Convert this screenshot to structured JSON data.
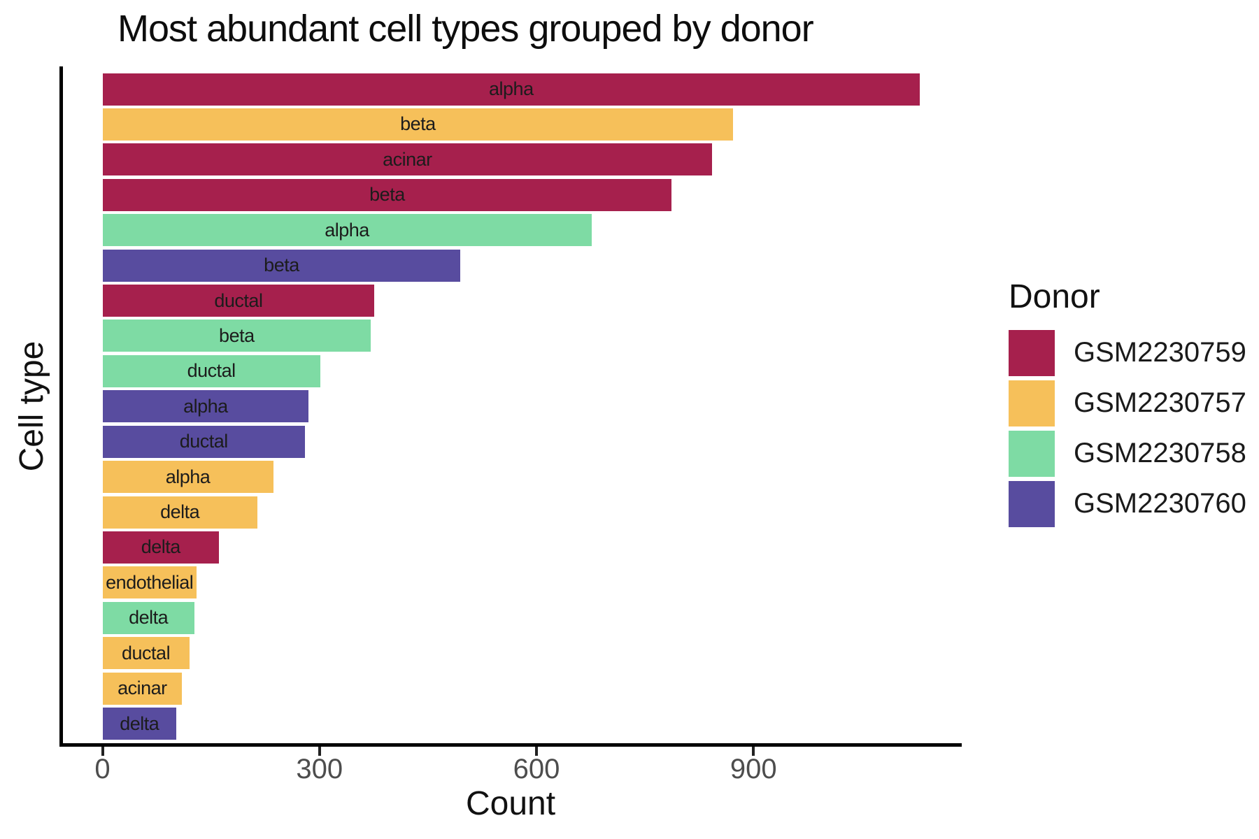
{
  "colors": {
    "background": "#FFFFFF",
    "axis_line": "#000000",
    "tick_text": "#4D4D4D",
    "text": "#111111"
  },
  "chart_data": {
    "type": "bar",
    "orientation": "horizontal",
    "title": "Most abundant cell types grouped by donor",
    "xlabel": "Count",
    "ylabel": "Cell type",
    "xlim": [
      0,
      1185
    ],
    "xticks": [
      0,
      300,
      600,
      900
    ],
    "grid": false,
    "bar_labels_inside": true,
    "legend": {
      "title": "Donor",
      "position": "right"
    },
    "donors": [
      {
        "id": "GSM2230759",
        "color": "#A6204D"
      },
      {
        "id": "GSM2230757",
        "color": "#F6C05A"
      },
      {
        "id": "GSM2230758",
        "color": "#7EDBA4"
      },
      {
        "id": "GSM2230760",
        "color": "#584C9F"
      }
    ],
    "bars": [
      {
        "cell_type": "alpha",
        "donor": "GSM2230759",
        "count": 1130
      },
      {
        "cell_type": "beta",
        "donor": "GSM2230757",
        "count": 872
      },
      {
        "cell_type": "acinar",
        "donor": "GSM2230759",
        "count": 843
      },
      {
        "cell_type": "beta",
        "donor": "GSM2230759",
        "count": 787
      },
      {
        "cell_type": "alpha",
        "donor": "GSM2230758",
        "count": 676
      },
      {
        "cell_type": "beta",
        "donor": "GSM2230760",
        "count": 495
      },
      {
        "cell_type": "ductal",
        "donor": "GSM2230759",
        "count": 376
      },
      {
        "cell_type": "beta",
        "donor": "GSM2230758",
        "count": 371
      },
      {
        "cell_type": "ductal",
        "donor": "GSM2230758",
        "count": 301
      },
      {
        "cell_type": "alpha",
        "donor": "GSM2230760",
        "count": 285
      },
      {
        "cell_type": "ductal",
        "donor": "GSM2230760",
        "count": 280
      },
      {
        "cell_type": "alpha",
        "donor": "GSM2230757",
        "count": 236
      },
      {
        "cell_type": "delta",
        "donor": "GSM2230757",
        "count": 214
      },
      {
        "cell_type": "delta",
        "donor": "GSM2230759",
        "count": 161
      },
      {
        "cell_type": "endothelial",
        "donor": "GSM2230757",
        "count": 130
      },
      {
        "cell_type": "delta",
        "donor": "GSM2230758",
        "count": 127
      },
      {
        "cell_type": "ductal",
        "donor": "GSM2230757",
        "count": 120
      },
      {
        "cell_type": "acinar",
        "donor": "GSM2230757",
        "count": 110
      },
      {
        "cell_type": "delta",
        "donor": "GSM2230760",
        "count": 102
      }
    ]
  }
}
